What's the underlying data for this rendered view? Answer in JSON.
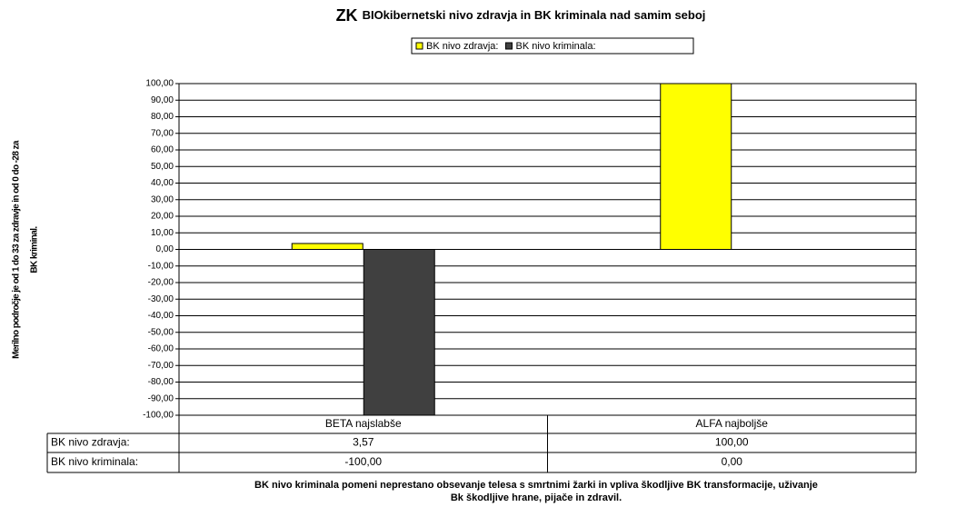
{
  "chart_data": {
    "type": "bar",
    "title": {
      "emphasis": "ZK",
      "text": "BIOkibernetski nivo zdravja in BK kriminala nad samim seboj"
    },
    "ylabel": [
      "Merilno področje je od 1 do 33 za zdravje in od 0 do -28 za",
      "BK kriminal."
    ],
    "categories": [
      "BETA najslabše",
      "ALFA najboljše"
    ],
    "series": [
      {
        "name": "BK nivo zdravja:",
        "color": "#ffff00",
        "values": [
          3.57,
          100
        ],
        "value_labels": [
          "3,57",
          "100,00"
        ]
      },
      {
        "name": "BK nivo kriminala:",
        "color": "#404040",
        "values": [
          -100,
          0
        ],
        "value_labels": [
          "-100,00",
          "0,00"
        ]
      }
    ],
    "ylim": [
      -100,
      100
    ],
    "yticks": [
      {
        "value": 100,
        "label": "100,00"
      },
      {
        "value": 90,
        "label": "90,00"
      },
      {
        "value": 80,
        "label": "80,00"
      },
      {
        "value": 70,
        "label": "70,00"
      },
      {
        "value": 60,
        "label": "60,00"
      },
      {
        "value": 50,
        "label": "50,00"
      },
      {
        "value": 40,
        "label": "40,00"
      },
      {
        "value": 30,
        "label": "30,00"
      },
      {
        "value": 20,
        "label": "20,00"
      },
      {
        "value": 10,
        "label": "10,00"
      },
      {
        "value": 0,
        "label": "0,00"
      },
      {
        "value": -10,
        "label": "-10,00"
      },
      {
        "value": -20,
        "label": "-20,00"
      },
      {
        "value": -30,
        "label": "-30,00"
      },
      {
        "value": -40,
        "label": "-40,00"
      },
      {
        "value": -50,
        "label": "-50,00"
      },
      {
        "value": -60,
        "label": "-60,00"
      },
      {
        "value": -70,
        "label": "-70,00"
      },
      {
        "value": -80,
        "label": "-80,00"
      },
      {
        "value": -90,
        "label": "-90,00"
      },
      {
        "value": -100,
        "label": "-100,00"
      }
    ],
    "grid": true,
    "legend": "top",
    "footnote": [
      "BK nivo kriminala pomeni neprestano obsevanje telesa s smrtnimi žarki in vpliva škodljive BK transformacije, uživanje",
      "Bk škodljive hrane, pijače in zdravil."
    ]
  }
}
